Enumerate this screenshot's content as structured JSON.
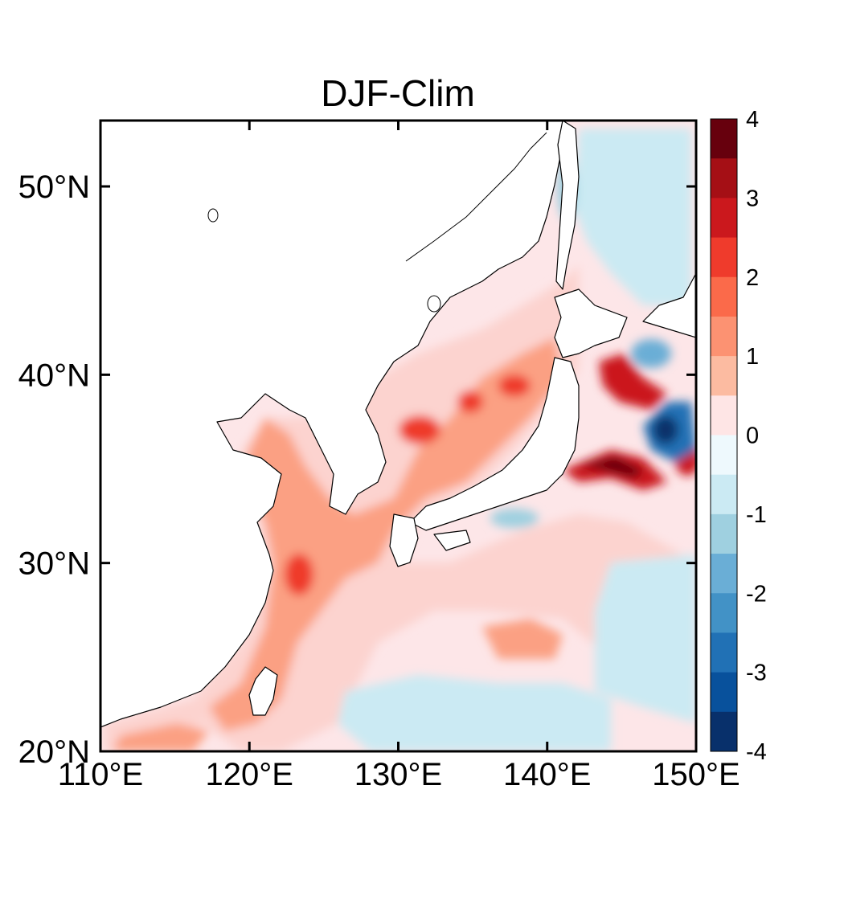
{
  "chart_data": {
    "type": "heatmap",
    "title": "DJF-Clim",
    "lon_range": [
      110,
      150
    ],
    "lat_range": [
      20,
      53.5
    ],
    "x_ticks": [
      "110°E",
      "120°E",
      "130°E",
      "140°E",
      "150°E"
    ],
    "y_ticks": [
      "20°N",
      "30°N",
      "40°N",
      "50°N"
    ],
    "colorbar": {
      "min": -4,
      "max": 4,
      "tick_labels": [
        "4",
        "3",
        "2",
        "1",
        "0",
        "-1",
        "-2",
        "-3",
        "-4"
      ],
      "levels_top_to_bottom": [
        "#67000d",
        "#a50f15",
        "#cb181d",
        "#ef3b2c",
        "#fb6a4a",
        "#fc9272",
        "#fcbba1",
        "#fee5e5",
        "#eef9fd",
        "#cbeaf3",
        "#9fd0e0",
        "#6aaed6",
        "#4292c6",
        "#2171b5",
        "#08519c",
        "#08306b"
      ]
    },
    "ocean_background_color": "#fde6e8",
    "land_color": "#ffffff"
  }
}
